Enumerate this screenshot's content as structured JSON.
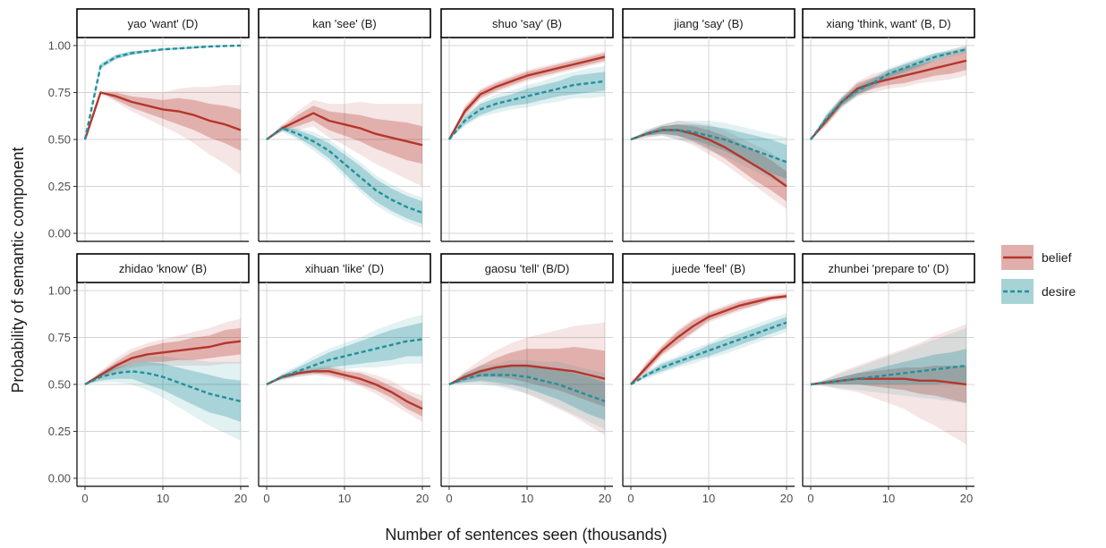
{
  "chart_data": {
    "type": "line",
    "xlabel": "Number of sentences seen (thousands)",
    "ylabel": "Probability of semantic component",
    "xlim": [
      0,
      20
    ],
    "ylim": [
      0,
      1
    ],
    "x_ticks": [
      0,
      10,
      20
    ],
    "x_tick_labels": [
      "0",
      "10",
      "20"
    ],
    "y_ticks": [
      0,
      0.25,
      0.5,
      0.75,
      1
    ],
    "y_tick_labels": [
      "0.00",
      "0.25",
      "0.50",
      "0.75",
      "1.00"
    ],
    "grid": true,
    "legend_position": "right",
    "x": [
      0,
      2,
      4,
      6,
      8,
      10,
      12,
      14,
      16,
      18,
      20
    ],
    "colors": {
      "belief": "#b5362c",
      "desire": "#22909a"
    },
    "legend": [
      {
        "name": "belief",
        "line": "solid"
      },
      {
        "name": "desire",
        "line": "dashed"
      }
    ],
    "panels": [
      {
        "title": "yao 'want' (D)",
        "series": [
          {
            "name": "belief",
            "values": [
              0.5,
              0.75,
              0.73,
              0.7,
              0.68,
              0.66,
              0.65,
              0.63,
              0.6,
              0.58,
              0.55
            ],
            "inner": [
              0,
              0,
              0.02,
              0.03,
              0.04,
              0.05,
              0.07,
              0.08,
              0.09,
              0.1,
              0.11
            ],
            "outer": [
              0,
              0.01,
              0.03,
              0.05,
              0.07,
              0.09,
              0.12,
              0.15,
              0.18,
              0.21,
              0.24
            ]
          },
          {
            "name": "desire",
            "values": [
              0.5,
              0.89,
              0.94,
              0.96,
              0.97,
              0.98,
              0.985,
              0.99,
              0.995,
              0.998,
              1.0
            ],
            "inner": [
              0,
              0.01,
              0.01,
              0.01,
              0.005,
              0.005,
              0.005,
              0.005,
              0.002,
              0.002,
              0.002
            ],
            "outer": [
              0,
              0.02,
              0.015,
              0.01,
              0.008,
              0.006,
              0.005,
              0.005,
              0.003,
              0.003,
              0.002
            ]
          }
        ]
      },
      {
        "title": "kan 'see' (B)",
        "series": [
          {
            "name": "belief",
            "values": [
              0.5,
              0.56,
              0.6,
              0.64,
              0.6,
              0.58,
              0.56,
              0.53,
              0.51,
              0.49,
              0.47
            ],
            "inner": [
              0,
              0.01,
              0.03,
              0.04,
              0.05,
              0.06,
              0.07,
              0.08,
              0.09,
              0.1,
              0.1
            ],
            "outer": [
              0,
              0.02,
              0.05,
              0.07,
              0.09,
              0.11,
              0.14,
              0.16,
              0.18,
              0.2,
              0.22
            ]
          },
          {
            "name": "desire",
            "values": [
              0.5,
              0.56,
              0.53,
              0.49,
              0.44,
              0.37,
              0.3,
              0.23,
              0.18,
              0.14,
              0.11
            ],
            "inner": [
              0,
              0.01,
              0.02,
              0.03,
              0.04,
              0.05,
              0.06,
              0.06,
              0.06,
              0.06,
              0.06
            ],
            "outer": [
              0,
              0.02,
              0.03,
              0.05,
              0.06,
              0.07,
              0.08,
              0.08,
              0.08,
              0.08,
              0.08
            ]
          }
        ]
      },
      {
        "title": "shuo 'say' (B)",
        "series": [
          {
            "name": "belief",
            "values": [
              0.5,
              0.65,
              0.74,
              0.78,
              0.81,
              0.84,
              0.86,
              0.88,
              0.9,
              0.92,
              0.94
            ],
            "inner": [
              0,
              0.02,
              0.02,
              0.02,
              0.02,
              0.02,
              0.02,
              0.02,
              0.02,
              0.02,
              0.02
            ],
            "outer": [
              0,
              0.03,
              0.03,
              0.03,
              0.03,
              0.03,
              0.03,
              0.03,
              0.03,
              0.03,
              0.03
            ]
          },
          {
            "name": "desire",
            "values": [
              0.5,
              0.6,
              0.66,
              0.69,
              0.71,
              0.73,
              0.75,
              0.77,
              0.79,
              0.8,
              0.81
            ],
            "inner": [
              0,
              0.02,
              0.03,
              0.03,
              0.03,
              0.04,
              0.04,
              0.04,
              0.05,
              0.05,
              0.05
            ],
            "outer": [
              0,
              0.03,
              0.04,
              0.05,
              0.05,
              0.06,
              0.06,
              0.07,
              0.07,
              0.08,
              0.08
            ]
          }
        ]
      },
      {
        "title": "jiang 'say' (B)",
        "series": [
          {
            "name": "belief",
            "values": [
              0.5,
              0.53,
              0.55,
              0.55,
              0.53,
              0.5,
              0.46,
              0.41,
              0.36,
              0.31,
              0.25
            ],
            "inner": [
              0,
              0.01,
              0.02,
              0.03,
              0.04,
              0.05,
              0.06,
              0.07,
              0.08,
              0.08,
              0.08
            ],
            "outer": [
              0,
              0.02,
              0.03,
              0.05,
              0.06,
              0.08,
              0.09,
              0.1,
              0.11,
              0.12,
              0.12
            ]
          },
          {
            "name": "desire",
            "values": [
              0.5,
              0.53,
              0.55,
              0.55,
              0.54,
              0.52,
              0.5,
              0.47,
              0.44,
              0.41,
              0.38
            ],
            "inner": [
              0,
              0.01,
              0.02,
              0.03,
              0.04,
              0.05,
              0.06,
              0.07,
              0.08,
              0.09,
              0.09
            ],
            "outer": [
              0,
              0.02,
              0.03,
              0.05,
              0.06,
              0.08,
              0.09,
              0.1,
              0.11,
              0.12,
              0.13
            ]
          }
        ]
      },
      {
        "title": "xiang 'think, want' (B, D)",
        "series": [
          {
            "name": "belief",
            "values": [
              0.5,
              0.6,
              0.7,
              0.77,
              0.8,
              0.82,
              0.84,
              0.86,
              0.88,
              0.9,
              0.92
            ],
            "inner": [
              0,
              0.02,
              0.02,
              0.03,
              0.03,
              0.03,
              0.04,
              0.04,
              0.04,
              0.05,
              0.05
            ],
            "outer": [
              0,
              0.03,
              0.03,
              0.04,
              0.05,
              0.05,
              0.06,
              0.06,
              0.07,
              0.08,
              0.08
            ]
          },
          {
            "name": "desire",
            "values": [
              0.5,
              0.61,
              0.7,
              0.76,
              0.8,
              0.85,
              0.88,
              0.91,
              0.94,
              0.96,
              0.98
            ],
            "inner": [
              0,
              0.02,
              0.02,
              0.02,
              0.02,
              0.02,
              0.02,
              0.02,
              0.02,
              0.01,
              0.01
            ],
            "outer": [
              0,
              0.03,
              0.03,
              0.03,
              0.03,
              0.03,
              0.03,
              0.03,
              0.02,
              0.02,
              0.02
            ]
          }
        ]
      },
      {
        "title": "zhidao 'know' (B)",
        "series": [
          {
            "name": "belief",
            "values": [
              0.5,
              0.55,
              0.6,
              0.64,
              0.66,
              0.67,
              0.68,
              0.69,
              0.7,
              0.72,
              0.73
            ],
            "inner": [
              0,
              0.01,
              0.02,
              0.03,
              0.04,
              0.05,
              0.05,
              0.06,
              0.06,
              0.07,
              0.07
            ],
            "outer": [
              0,
              0.02,
              0.04,
              0.05,
              0.06,
              0.07,
              0.08,
              0.09,
              0.1,
              0.11,
              0.12
            ]
          },
          {
            "name": "desire",
            "values": [
              0.5,
              0.54,
              0.56,
              0.57,
              0.56,
              0.54,
              0.51,
              0.48,
              0.45,
              0.43,
              0.41
            ],
            "inner": [
              0,
              0.02,
              0.03,
              0.04,
              0.06,
              0.07,
              0.08,
              0.09,
              0.1,
              0.1,
              0.11
            ],
            "outer": [
              0,
              0.03,
              0.05,
              0.07,
              0.09,
              0.11,
              0.13,
              0.15,
              0.17,
              0.19,
              0.21
            ]
          }
        ]
      },
      {
        "title": "xihuan 'like' (D)",
        "series": [
          {
            "name": "belief",
            "values": [
              0.5,
              0.54,
              0.56,
              0.57,
              0.57,
              0.55,
              0.53,
              0.5,
              0.46,
              0.41,
              0.37
            ],
            "inner": [
              0,
              0.01,
              0.01,
              0.01,
              0.02,
              0.02,
              0.03,
              0.03,
              0.03,
              0.04,
              0.04
            ],
            "outer": [
              0,
              0.01,
              0.02,
              0.02,
              0.03,
              0.03,
              0.04,
              0.05,
              0.06,
              0.06,
              0.07
            ]
          },
          {
            "name": "desire",
            "values": [
              0.5,
              0.54,
              0.57,
              0.6,
              0.63,
              0.65,
              0.67,
              0.69,
              0.71,
              0.73,
              0.74
            ],
            "inner": [
              0,
              0.01,
              0.02,
              0.03,
              0.04,
              0.05,
              0.06,
              0.07,
              0.08,
              0.08,
              0.09
            ],
            "outer": [
              0,
              0.02,
              0.03,
              0.05,
              0.06,
              0.07,
              0.08,
              0.1,
              0.11,
              0.12,
              0.13
            ]
          }
        ]
      },
      {
        "title": "gaosu 'tell' (B/D)",
        "series": [
          {
            "name": "belief",
            "values": [
              0.5,
              0.54,
              0.57,
              0.59,
              0.6,
              0.6,
              0.59,
              0.58,
              0.57,
              0.55,
              0.53
            ],
            "inner": [
              0,
              0.02,
              0.03,
              0.05,
              0.07,
              0.09,
              0.1,
              0.11,
              0.13,
              0.14,
              0.15
            ],
            "outer": [
              0,
              0.03,
              0.06,
              0.09,
              0.12,
              0.15,
              0.18,
              0.21,
              0.24,
              0.27,
              0.3
            ]
          },
          {
            "name": "desire",
            "values": [
              0.5,
              0.53,
              0.55,
              0.55,
              0.55,
              0.54,
              0.52,
              0.5,
              0.47,
              0.44,
              0.41
            ],
            "inner": [
              0,
              0.02,
              0.03,
              0.04,
              0.05,
              0.06,
              0.07,
              0.08,
              0.09,
              0.1,
              0.1
            ],
            "outer": [
              0,
              0.03,
              0.05,
              0.06,
              0.08,
              0.09,
              0.1,
              0.12,
              0.13,
              0.14,
              0.15
            ]
          }
        ]
      },
      {
        "title": "juede 'feel' (B)",
        "series": [
          {
            "name": "belief",
            "values": [
              0.5,
              0.59,
              0.68,
              0.75,
              0.81,
              0.86,
              0.89,
              0.92,
              0.94,
              0.96,
              0.97
            ],
            "inner": [
              0,
              0.02,
              0.02,
              0.03,
              0.03,
              0.02,
              0.02,
              0.02,
              0.02,
              0.01,
              0.01
            ],
            "outer": [
              0,
              0.03,
              0.03,
              0.04,
              0.04,
              0.03,
              0.03,
              0.03,
              0.02,
              0.02,
              0.02
            ]
          },
          {
            "name": "desire",
            "values": [
              0.5,
              0.55,
              0.59,
              0.62,
              0.65,
              0.68,
              0.71,
              0.74,
              0.77,
              0.8,
              0.83
            ],
            "inner": [
              0,
              0.01,
              0.02,
              0.02,
              0.02,
              0.03,
              0.03,
              0.03,
              0.03,
              0.03,
              0.03
            ],
            "outer": [
              0,
              0.02,
              0.03,
              0.03,
              0.04,
              0.04,
              0.05,
              0.05,
              0.05,
              0.05,
              0.05
            ]
          }
        ]
      },
      {
        "title": "zhunbei 'prepare to' (D)",
        "series": [
          {
            "name": "belief",
            "values": [
              0.5,
              0.51,
              0.52,
              0.53,
              0.53,
              0.53,
              0.53,
              0.52,
              0.52,
              0.51,
              0.5
            ],
            "inner": [
              0,
              0.01,
              0.02,
              0.03,
              0.04,
              0.05,
              0.06,
              0.07,
              0.08,
              0.09,
              0.1
            ],
            "outer": [
              0,
              0.02,
              0.05,
              0.07,
              0.1,
              0.13,
              0.16,
              0.2,
              0.24,
              0.28,
              0.32
            ]
          },
          {
            "name": "desire",
            "values": [
              0.5,
              0.51,
              0.52,
              0.53,
              0.54,
              0.55,
              0.56,
              0.57,
              0.58,
              0.59,
              0.6
            ],
            "inner": [
              0,
              0.01,
              0.02,
              0.03,
              0.04,
              0.05,
              0.06,
              0.07,
              0.08,
              0.08,
              0.09
            ],
            "outer": [
              0,
              0.02,
              0.04,
              0.06,
              0.08,
              0.1,
              0.12,
              0.14,
              0.16,
              0.18,
              0.2
            ]
          }
        ]
      }
    ]
  }
}
